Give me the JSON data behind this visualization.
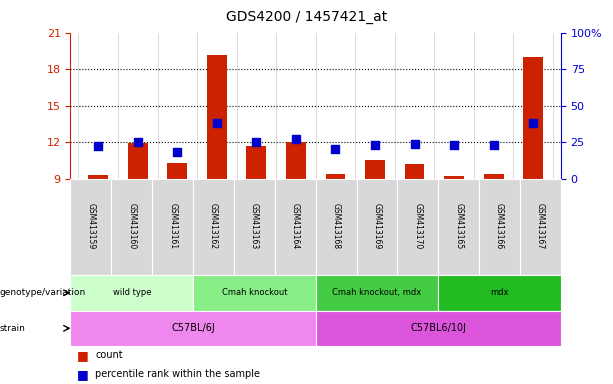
{
  "title": "GDS4200 / 1457421_at",
  "samples": [
    "GSM413159",
    "GSM413160",
    "GSM413161",
    "GSM413162",
    "GSM413163",
    "GSM413164",
    "GSM413168",
    "GSM413169",
    "GSM413170",
    "GSM413165",
    "GSM413166",
    "GSM413167"
  ],
  "counts": [
    9.3,
    11.9,
    10.3,
    19.2,
    11.7,
    12.0,
    9.4,
    10.5,
    10.2,
    9.2,
    9.4,
    19.0
  ],
  "percentiles": [
    22,
    25,
    18,
    38,
    25,
    27,
    20,
    23,
    24,
    23,
    23,
    38
  ],
  "ylim_left": [
    9,
    21
  ],
  "ylim_right": [
    0,
    100
  ],
  "yticks_left": [
    9,
    12,
    15,
    18,
    21
  ],
  "yticks_right": [
    0,
    25,
    50,
    75,
    100
  ],
  "bar_color": "#cc2200",
  "dot_color": "#0000cc",
  "genotype_groups": [
    {
      "label": "wild type",
      "start": 0,
      "end": 2,
      "color": "#ccffcc"
    },
    {
      "label": "Cmah knockout",
      "start": 3,
      "end": 5,
      "color": "#88ee88"
    },
    {
      "label": "Cmah knockout, mdx",
      "start": 6,
      "end": 8,
      "color": "#44cc44"
    },
    {
      "label": "mdx",
      "start": 9,
      "end": 11,
      "color": "#22bb22"
    }
  ],
  "strain_groups": [
    {
      "label": "C57BL/6J",
      "start": 0,
      "end": 5,
      "color": "#ee88ee"
    },
    {
      "label": "C57BL6/10J",
      "start": 6,
      "end": 11,
      "color": "#dd55dd"
    }
  ],
  "bar_width": 0.5,
  "dot_size": 40,
  "sample_col_color": "#d8d8d8"
}
